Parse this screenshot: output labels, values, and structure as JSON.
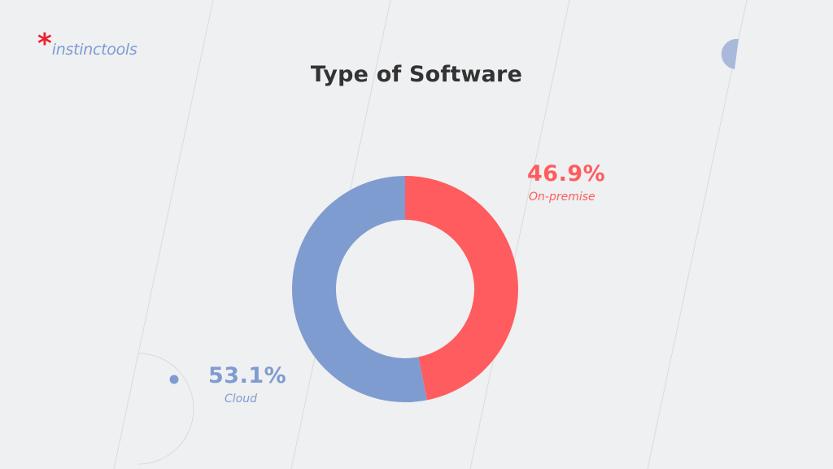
{
  "brand": {
    "star": "*",
    "name": "instinctools"
  },
  "colors": {
    "on_premise": "#ff5c5f",
    "cloud": "#7f9cd0",
    "title": "#333333",
    "background": "#eff0f2"
  },
  "chart_data": {
    "type": "pie",
    "style": "donut",
    "title": "Type of Software",
    "slices": [
      {
        "label": "On-premise",
        "value": 46.9,
        "display": "46.9%",
        "color": "#ff5c5f"
      },
      {
        "label": "Cloud",
        "value": 53.1,
        "display": "53.1%",
        "color": "#7f9cd0"
      }
    ]
  }
}
